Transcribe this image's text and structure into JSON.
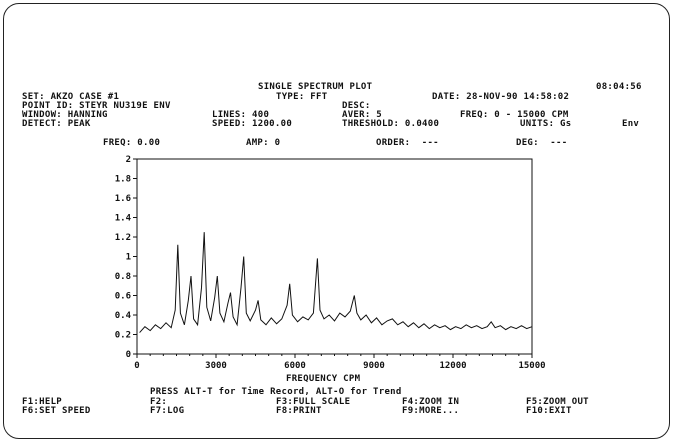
{
  "header": {
    "title": "SINGLE SPECTRUM PLOT",
    "clock": "08:04:56",
    "set": "SET: AKZO CASE #1",
    "type": "TYPE: FFT",
    "date": "DATE: 28-NOV-90 14:58:02",
    "point_id": "POINT ID: STEYR NU319E ENV",
    "desc": "DESC:",
    "window": "WINDOW: HANNING",
    "lines": "LINES: 400",
    "aver": "AVER: 5",
    "freq_range": "FREQ: 0 - 15000 CPM",
    "detect": "DETECT: PEAK",
    "speed": "SPEED: 1200.00",
    "threshold": "THRESHOLD: 0.0400",
    "units": "UNITS: Gs",
    "env": "Env"
  },
  "cursor": {
    "freq": "FREQ: 0.00",
    "amp": "AMP: 0",
    "order": "ORDER:  ---",
    "deg": "DEG:  ---"
  },
  "chart_data": {
    "type": "line",
    "title": "SINGLE SPECTRUM PLOT",
    "xlabel": "FREQUENCY CPM",
    "ylabel": "",
    "xlim": [
      0,
      15000
    ],
    "ylim": [
      0,
      2
    ],
    "x_ticks": [
      "0",
      "3000",
      "6000",
      "9000",
      "12000",
      "15000"
    ],
    "y_ticks": [
      "0",
      "0.2",
      "0.4",
      "0.6",
      "0.8",
      "1",
      "1.2",
      "1.4",
      "1.6",
      "1.8",
      "2"
    ],
    "grid": false,
    "series": [
      {
        "name": "",
        "points": [
          [
            100,
            0.22
          ],
          [
            300,
            0.28
          ],
          [
            500,
            0.24
          ],
          [
            700,
            0.3
          ],
          [
            900,
            0.26
          ],
          [
            1100,
            0.32
          ],
          [
            1300,
            0.27
          ],
          [
            1450,
            0.45
          ],
          [
            1550,
            1.12
          ],
          [
            1650,
            0.42
          ],
          [
            1800,
            0.3
          ],
          [
            1950,
            0.55
          ],
          [
            2050,
            0.8
          ],
          [
            2150,
            0.36
          ],
          [
            2300,
            0.3
          ],
          [
            2450,
            0.68
          ],
          [
            2550,
            1.25
          ],
          [
            2650,
            0.48
          ],
          [
            2800,
            0.34
          ],
          [
            2950,
            0.58
          ],
          [
            3050,
            0.8
          ],
          [
            3150,
            0.42
          ],
          [
            3300,
            0.33
          ],
          [
            3450,
            0.52
          ],
          [
            3550,
            0.63
          ],
          [
            3650,
            0.38
          ],
          [
            3800,
            0.3
          ],
          [
            3950,
            0.68
          ],
          [
            4050,
            1.0
          ],
          [
            4150,
            0.42
          ],
          [
            4300,
            0.34
          ],
          [
            4500,
            0.45
          ],
          [
            4600,
            0.55
          ],
          [
            4700,
            0.35
          ],
          [
            4900,
            0.3
          ],
          [
            5100,
            0.37
          ],
          [
            5300,
            0.31
          ],
          [
            5500,
            0.36
          ],
          [
            5700,
            0.5
          ],
          [
            5800,
            0.72
          ],
          [
            5900,
            0.4
          ],
          [
            6100,
            0.33
          ],
          [
            6300,
            0.38
          ],
          [
            6500,
            0.35
          ],
          [
            6700,
            0.42
          ],
          [
            6850,
            0.98
          ],
          [
            6950,
            0.45
          ],
          [
            7100,
            0.36
          ],
          [
            7300,
            0.4
          ],
          [
            7500,
            0.34
          ],
          [
            7700,
            0.42
          ],
          [
            7900,
            0.38
          ],
          [
            8100,
            0.44
          ],
          [
            8250,
            0.6
          ],
          [
            8350,
            0.42
          ],
          [
            8500,
            0.35
          ],
          [
            8700,
            0.4
          ],
          [
            8900,
            0.32
          ],
          [
            9100,
            0.37
          ],
          [
            9300,
            0.3
          ],
          [
            9500,
            0.34
          ],
          [
            9700,
            0.36
          ],
          [
            9900,
            0.3
          ],
          [
            10100,
            0.33
          ],
          [
            10300,
            0.28
          ],
          [
            10500,
            0.32
          ],
          [
            10700,
            0.27
          ],
          [
            10900,
            0.31
          ],
          [
            11100,
            0.26
          ],
          [
            11300,
            0.3
          ],
          [
            11500,
            0.27
          ],
          [
            11700,
            0.29
          ],
          [
            11900,
            0.25
          ],
          [
            12100,
            0.28
          ],
          [
            12300,
            0.26
          ],
          [
            12500,
            0.3
          ],
          [
            12700,
            0.27
          ],
          [
            12900,
            0.29
          ],
          [
            13100,
            0.26
          ],
          [
            13300,
            0.28
          ],
          [
            13450,
            0.33
          ],
          [
            13600,
            0.27
          ],
          [
            13800,
            0.29
          ],
          [
            14000,
            0.25
          ],
          [
            14200,
            0.28
          ],
          [
            14400,
            0.26
          ],
          [
            14600,
            0.29
          ],
          [
            14800,
            0.26
          ],
          [
            15000,
            0.28
          ]
        ]
      }
    ]
  },
  "footer": {
    "hint": "PRESS ALT-T for Time Record, ALT-O for Trend",
    "f1": "F1:HELP",
    "f2": "F2:",
    "f3": "F3:FULL SCALE",
    "f4": "F4:ZOOM IN",
    "f5": "F5:ZOOM OUT",
    "f6": "F6:SET SPEED",
    "f7": "F7:LOG",
    "f8": "F8:PRINT",
    "f9": "F9:MORE...",
    "f10": "F10:EXIT"
  }
}
